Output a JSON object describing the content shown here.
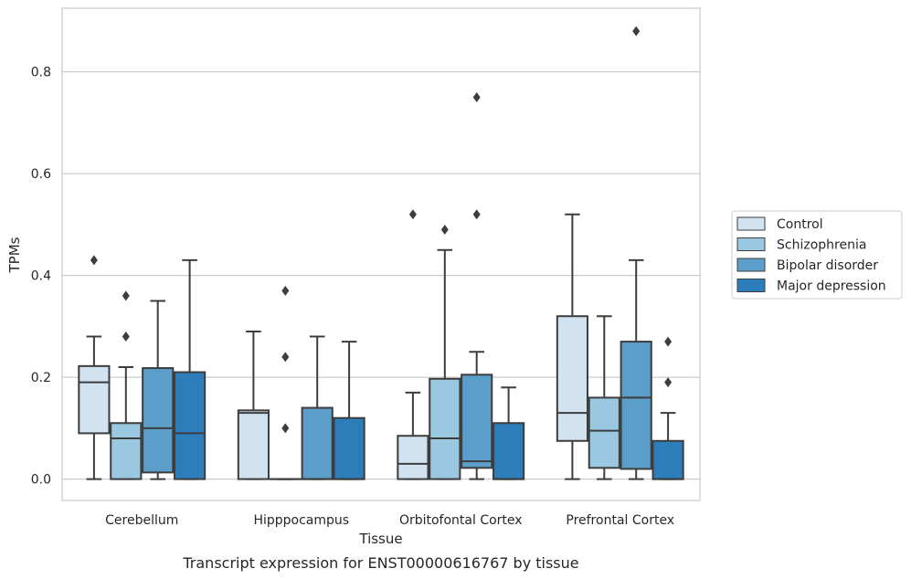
{
  "chart_data": {
    "type": "boxplot",
    "title": "",
    "caption": "Transcript expression for ENST00000616767 by tissue",
    "xlabel": "Tissue",
    "ylabel": "TPMs",
    "ylim": [
      -0.042,
      0.925
    ],
    "yticks": [
      0.0,
      0.2,
      0.4,
      0.6,
      0.8
    ],
    "ytick_labels": [
      "0.0",
      "0.2",
      "0.4",
      "0.6",
      "0.8"
    ],
    "grid": "horizontal",
    "legend_position": "right",
    "categories": [
      "Cerebellum",
      "Hipppocampus",
      "Orbitofontal Cortex",
      "Prefrontal Cortex"
    ],
    "series": [
      {
        "name": "Control",
        "color": "#d1e2f1",
        "boxes": [
          {
            "whislo": 0.0,
            "q1": 0.09,
            "med": 0.19,
            "q3": 0.222,
            "whishi": 0.28,
            "fliers": [
              0.43
            ]
          },
          {
            "whislo": 0.0,
            "q1": 0.0,
            "med": 0.13,
            "q3": 0.135,
            "whishi": 0.29,
            "fliers": []
          },
          {
            "whislo": 0.0,
            "q1": 0.0,
            "med": 0.03,
            "q3": 0.085,
            "whishi": 0.17,
            "fliers": [
              0.52
            ]
          },
          {
            "whislo": 0.0,
            "q1": 0.075,
            "med": 0.13,
            "q3": 0.32,
            "whishi": 0.52,
            "fliers": []
          }
        ]
      },
      {
        "name": "Schizophrenia",
        "color": "#9ac8e0",
        "boxes": [
          {
            "whislo": 0.0,
            "q1": 0.0,
            "med": 0.08,
            "q3": 0.11,
            "whishi": 0.22,
            "fliers": [
              0.36,
              0.28
            ]
          },
          {
            "whislo": 0.0,
            "q1": 0.0,
            "med": 0.0,
            "q3": 0.0,
            "whishi": 0.0,
            "fliers": [
              0.37,
              0.24,
              0.1
            ]
          },
          {
            "whislo": 0.0,
            "q1": 0.0,
            "med": 0.08,
            "q3": 0.197,
            "whishi": 0.45,
            "fliers": [
              0.49
            ]
          },
          {
            "whislo": 0.0,
            "q1": 0.022,
            "med": 0.095,
            "q3": 0.16,
            "whishi": 0.32,
            "fliers": []
          }
        ]
      },
      {
        "name": "Bipolar disorder",
        "color": "#5b9ec9",
        "boxes": [
          {
            "whislo": 0.0,
            "q1": 0.013,
            "med": 0.1,
            "q3": 0.218,
            "whishi": 0.35,
            "fliers": []
          },
          {
            "whislo": 0.0,
            "q1": 0.0,
            "med": 0.0,
            "q3": 0.14,
            "whishi": 0.28,
            "fliers": []
          },
          {
            "whislo": 0.0,
            "q1": 0.022,
            "med": 0.035,
            "q3": 0.205,
            "whishi": 0.25,
            "fliers": [
              0.75,
              0.52
            ]
          },
          {
            "whislo": 0.0,
            "q1": 0.02,
            "med": 0.16,
            "q3": 0.27,
            "whishi": 0.43,
            "fliers": [
              0.88
            ]
          }
        ]
      },
      {
        "name": "Major depression",
        "color": "#2d7dbb",
        "boxes": [
          {
            "whislo": 0.0,
            "q1": 0.0,
            "med": 0.09,
            "q3": 0.21,
            "whishi": 0.43,
            "fliers": []
          },
          {
            "whislo": 0.0,
            "q1": 0.0,
            "med": 0.0,
            "q3": 0.12,
            "whishi": 0.27,
            "fliers": []
          },
          {
            "whislo": 0.0,
            "q1": 0.0,
            "med": 0.0,
            "q3": 0.11,
            "whishi": 0.18,
            "fliers": []
          },
          {
            "whislo": 0.0,
            "q1": 0.0,
            "med": 0.0,
            "q3": 0.075,
            "whishi": 0.13,
            "fliers": [
              0.27,
              0.19
            ]
          }
        ]
      }
    ]
  }
}
